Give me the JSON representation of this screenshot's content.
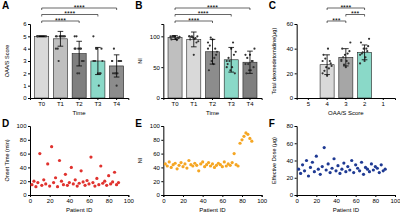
{
  "chart_data": [
    {
      "type": "bar",
      "panel": "A",
      "xlabel": "Time",
      "ylabel": "OAA/S Score",
      "categories": [
        "T0",
        "T1",
        "T2",
        "T3",
        "T4"
      ],
      "values": [
        5,
        4.8,
        3.6,
        3.0,
        2.6
      ],
      "errors": [
        0,
        0.6,
        1.0,
        1.1,
        0.9
      ],
      "colors": [
        "#d9d9d9",
        "#bfbfbf",
        "#7f7f7f",
        "#8ad9c8",
        "#8c8c8c"
      ],
      "points": [
        [
          5,
          5,
          5,
          5,
          5,
          5,
          5,
          5,
          5,
          5,
          5,
          5
        ],
        [
          5,
          5,
          5,
          5,
          5,
          5,
          4,
          5,
          5,
          3,
          5,
          4
        ],
        [
          5,
          4,
          3,
          4,
          2,
          3,
          5,
          4,
          3,
          2,
          4,
          4
        ],
        [
          3,
          4,
          2,
          3,
          2,
          4,
          3,
          1,
          3,
          4,
          2,
          5
        ],
        [
          3,
          2,
          3,
          2,
          1,
          3,
          4,
          2,
          3,
          2,
          3,
          3
        ]
      ],
      "comparisons": [
        {
          "from": "T0",
          "to": "T2",
          "label": "****"
        },
        {
          "from": "T0",
          "to": "T3",
          "label": "****"
        },
        {
          "from": "T0",
          "to": "T4",
          "label": "****"
        }
      ],
      "ylim": [
        0,
        6
      ],
      "yticks": [
        0,
        1,
        2,
        3,
        4,
        5,
        6
      ]
    },
    {
      "type": "bar",
      "panel": "B",
      "xlabel": "Time",
      "ylabel": "NI",
      "categories": [
        "T0",
        "T1",
        "T2",
        "T3",
        "T4"
      ],
      "values": [
        98,
        95,
        75,
        62,
        58
      ],
      "errors": [
        3,
        12,
        20,
        20,
        18
      ],
      "colors": [
        "#bfbfbf",
        "#d9d9d9",
        "#8c8c8c",
        "#8ad9c8",
        "#7f7f7f"
      ],
      "points": [
        [
          100,
          100,
          98,
          95,
          100,
          97,
          100,
          96,
          99,
          100,
          94,
          98
        ],
        [
          100,
          98,
          90,
          95,
          70,
          100,
          99,
          96,
          92,
          100,
          97,
          100
        ],
        [
          90,
          60,
          80,
          45,
          95,
          70,
          85,
          55,
          75,
          98,
          65,
          80
        ],
        [
          60,
          45,
          70,
          55,
          80,
          40,
          65,
          50,
          75,
          60,
          90,
          50
        ],
        [
          55,
          45,
          60,
          40,
          70,
          50,
          65,
          45,
          80,
          55,
          60,
          70
        ]
      ],
      "comparisons": [
        {
          "from": "T0",
          "to": "T2",
          "label": "****"
        },
        {
          "from": "T0",
          "to": "T3",
          "label": "****"
        },
        {
          "from": "T0",
          "to": "T4",
          "label": "****"
        }
      ],
      "ylim": [
        0,
        120
      ],
      "yticks": [
        0,
        50,
        100
      ]
    },
    {
      "type": "bar",
      "panel": "C",
      "xlabel": "OAA/S Score",
      "ylabel": "Total dexmedetomidine(μg)",
      "categories": [
        "5",
        "4",
        "3",
        "2",
        "1"
      ],
      "values": [
        null,
        27,
        33,
        37,
        null
      ],
      "errors": [
        null,
        8,
        7,
        6,
        null
      ],
      "colors": [
        null,
        "#d9d9d9",
        "#a6a6a6",
        "#8ad9c8",
        null
      ],
      "points": [
        [],
        [
          20,
          25,
          30,
          35,
          18,
          28,
          22,
          40,
          26,
          32,
          24,
          30
        ],
        [
          30,
          35,
          28,
          40,
          25,
          38,
          33,
          30,
          45,
          27,
          36,
          31
        ],
        [
          35,
          40,
          38,
          45,
          30,
          42,
          36,
          33,
          48,
          37,
          40,
          28
        ],
        []
      ],
      "comparisons": [
        {
          "from": "4",
          "to": "3",
          "label": "***"
        },
        {
          "from": "3",
          "to": "2",
          "label": "***"
        },
        {
          "from": "4",
          "to": "2",
          "label": "****"
        }
      ],
      "ylim": [
        0,
        60
      ],
      "yticks": [
        0,
        20,
        40,
        60
      ]
    },
    {
      "type": "scatter",
      "panel": "D",
      "xlabel": "Patient ID",
      "ylabel": "Onset Time (min)",
      "color": "#e0322e",
      "x": [
        2,
        4,
        6,
        8,
        10,
        12,
        14,
        16,
        18,
        20,
        22,
        24,
        26,
        28,
        30,
        32,
        34,
        36,
        38,
        40,
        42,
        44,
        46,
        48,
        50,
        52,
        54,
        56,
        58,
        60,
        62,
        64,
        66,
        68,
        70,
        72,
        74,
        76,
        78,
        80,
        82,
        84,
        86,
        88,
        90
      ],
      "values": [
        15,
        20,
        12,
        18,
        60,
        14,
        22,
        16,
        45,
        13,
        70,
        18,
        25,
        12,
        50,
        20,
        15,
        30,
        14,
        18,
        40,
        16,
        22,
        13,
        17,
        35,
        19,
        14,
        21,
        16,
        55,
        18,
        13,
        24,
        15,
        42,
        17,
        20,
        14,
        28,
        16,
        19,
        33,
        15,
        18
      ],
      "xlim": [
        0,
        100
      ],
      "xticks": [
        0,
        20,
        40,
        60,
        80,
        100
      ],
      "ylim": [
        0,
        100
      ],
      "yticks": [
        0,
        20,
        40,
        60,
        80,
        100
      ]
    },
    {
      "type": "scatter",
      "panel": "E",
      "xlabel": "Patient ID",
      "ylabel": "NI",
      "color": "#f5a623",
      "x": [
        2,
        4,
        6,
        8,
        10,
        12,
        14,
        16,
        18,
        20,
        22,
        24,
        26,
        28,
        30,
        32,
        34,
        36,
        38,
        40,
        42,
        44,
        46,
        48,
        50,
        52,
        54,
        56,
        58,
        60,
        62,
        64,
        66,
        68,
        70,
        72,
        74,
        76,
        78,
        80,
        82,
        84,
        86,
        88,
        90
      ],
      "values": [
        45,
        42,
        48,
        40,
        44,
        46,
        38,
        43,
        47,
        41,
        45,
        39,
        50,
        44,
        42,
        46,
        43,
        35,
        45,
        48,
        41,
        44,
        47,
        42,
        45,
        40,
        43,
        46,
        44,
        41,
        48,
        42,
        45,
        43,
        47,
        60,
        44,
        42,
        75,
        80,
        85,
        90,
        88,
        82,
        78
      ],
      "xlim": [
        0,
        100
      ],
      "xticks": [
        0,
        20,
        40,
        60,
        80,
        100
      ],
      "ylim": [
        0,
        100
      ],
      "yticks": [
        0,
        20,
        40,
        60,
        80,
        100
      ]
    },
    {
      "type": "scatter",
      "panel": "F",
      "xlabel": "Patient ID",
      "ylabel": "Effective Dose (μg)",
      "color": "#1f3a93",
      "x": [
        2,
        4,
        6,
        8,
        10,
        12,
        14,
        16,
        18,
        20,
        22,
        24,
        26,
        28,
        30,
        32,
        34,
        36,
        38,
        40,
        42,
        44,
        46,
        48,
        50,
        52,
        54,
        56,
        58,
        60,
        62,
        64,
        66,
        68,
        70,
        72,
        74,
        76,
        78,
        80,
        82,
        84,
        86,
        88,
        90
      ],
      "values": [
        30,
        25,
        35,
        28,
        40,
        22,
        32,
        38,
        27,
        45,
        30,
        24,
        33,
        55,
        29,
        36,
        26,
        31,
        42,
        28,
        34,
        25,
        30,
        37,
        27,
        33,
        29,
        40,
        26,
        35,
        31,
        28,
        38,
        24,
        32,
        30,
        27,
        36,
        29,
        33,
        31,
        26,
        35,
        28,
        30
      ],
      "xlim": [
        0,
        100
      ],
      "xticks": [
        0,
        20,
        40,
        60,
        80,
        100
      ],
      "ylim": [
        0,
        80
      ],
      "yticks": [
        0,
        20,
        40,
        60,
        80
      ]
    }
  ]
}
